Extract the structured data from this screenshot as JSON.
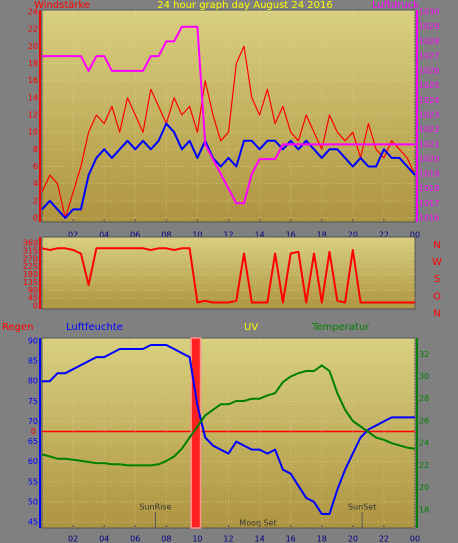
{
  "chart_data": [
    {
      "type": "line",
      "title": "24 hour graph day  August 24 2016",
      "y_label": "Windstärke",
      "y2_label": "Luftdruck",
      "axis_colors": {
        "y": "#ff0000",
        "y2": "#ff00ff"
      },
      "grid": true,
      "x": [
        0,
        0.5,
        1,
        1.5,
        2,
        2.5,
        3,
        3.5,
        4,
        4.5,
        5,
        5.5,
        6,
        6.5,
        7,
        7.5,
        8,
        8.5,
        9,
        9.5,
        10,
        10.5,
        11,
        11.5,
        12,
        12.5,
        13,
        13.5,
        14,
        14.5,
        15,
        15.5,
        16,
        16.5,
        17,
        17.5,
        18,
        18.5,
        19,
        19.5,
        20,
        20.5,
        21,
        21.5,
        22,
        22.5,
        23,
        23.5,
        24
      ],
      "xlim": [
        0,
        24
      ],
      "xticks": [
        {
          "value": 2,
          "label": "02"
        },
        {
          "value": 4,
          "label": "04"
        },
        {
          "value": 6,
          "label": "06"
        },
        {
          "value": 8,
          "label": "08"
        },
        {
          "value": 10,
          "label": "10"
        },
        12,
        14,
        16,
        18,
        20,
        22,
        {
          "value": 24,
          "label": "00"
        }
      ],
      "ylim": [
        0,
        24
      ],
      "yticks": [
        0,
        2,
        4,
        6,
        8,
        10,
        12,
        14,
        16,
        18,
        20,
        22,
        24
      ],
      "y2lim": [
        1016,
        1030
      ],
      "y2ticks": [
        1016,
        1017,
        1018,
        1019,
        1020,
        1021,
        1022,
        1023,
        1024,
        1025,
        1026,
        1027,
        1028,
        1029,
        1030
      ],
      "series": [
        {
          "color": "#ff0000",
          "values": [
            3,
            5,
            4,
            0,
            3,
            6,
            10,
            12,
            11,
            13,
            10,
            14,
            12,
            10,
            15,
            13,
            11,
            14,
            12,
            13,
            10,
            16,
            12,
            9,
            10,
            18,
            20,
            14,
            12,
            15,
            11,
            13,
            10,
            9,
            12,
            10,
            8,
            12,
            10,
            9,
            10,
            7,
            11,
            8,
            7,
            9,
            8,
            7,
            5
          ]
        },
        {
          "color": "#0000ff",
          "values": [
            1,
            2,
            1,
            0,
            1,
            1,
            5,
            7,
            8,
            7,
            8,
            9,
            8,
            9,
            8,
            9,
            11,
            10,
            8,
            9,
            7,
            9,
            7,
            6,
            7,
            6,
            9,
            9,
            8,
            9,
            9,
            8,
            9,
            8,
            9,
            8,
            7,
            8,
            8,
            7,
            6,
            7,
            6,
            6,
            8,
            7,
            7,
            6,
            5
          ]
        },
        {
          "color": "#ff00ff",
          "axis": "y2",
          "values": [
            1027,
            1027,
            1027,
            1027,
            1027,
            1027,
            1026,
            1027,
            1027,
            1026,
            1026,
            1026,
            1026,
            1026,
            1027,
            1027,
            1028,
            1028,
            1029,
            1029,
            1029,
            1021,
            1020,
            1019,
            1018,
            1017,
            1017,
            1019,
            1020,
            1020,
            1020,
            1021,
            1021,
            1021,
            1021,
            1021,
            1021,
            1021,
            1021,
            1021,
            1021,
            1021,
            1021,
            1021,
            1021,
            1021,
            1021,
            1021,
            1021
          ]
        }
      ]
    },
    {
      "type": "line",
      "axis_colors": {
        "y": "#ff0000"
      },
      "grid": true,
      "compass": [
        "N",
        "W",
        "S",
        "O",
        "N"
      ],
      "x": [
        0,
        0.5,
        1,
        1.5,
        2,
        2.5,
        3,
        3.5,
        4,
        4.5,
        5,
        5.5,
        6,
        6.5,
        7,
        7.5,
        8,
        8.5,
        9,
        9.5,
        10,
        10.5,
        11,
        11.5,
        12,
        12.5,
        13,
        13.5,
        14,
        14.5,
        15,
        15.5,
        16,
        16.5,
        17,
        17.5,
        18,
        18.5,
        19,
        19.5,
        20,
        20.5,
        21,
        21.5,
        22,
        22.5,
        23,
        23.5,
        24
      ],
      "xlim": [
        0,
        24
      ],
      "ylim": [
        0,
        360
      ],
      "yticks": [
        0,
        45,
        90,
        135,
        180,
        225,
        270,
        315,
        360
      ],
      "series": [
        {
          "color": "#ff0000",
          "values": [
            330,
            320,
            330,
            330,
            320,
            300,
            120,
            330,
            330,
            330,
            330,
            330,
            330,
            330,
            320,
            330,
            330,
            320,
            330,
            330,
            20,
            30,
            20,
            20,
            20,
            30,
            300,
            20,
            20,
            20,
            300,
            20,
            300,
            310,
            20,
            300,
            20,
            310,
            30,
            20,
            320,
            20,
            20,
            20,
            20,
            20,
            20,
            20,
            20
          ]
        }
      ]
    },
    {
      "type": "line",
      "y3_label": "Regen",
      "y_label": "Luftfeuchte",
      "uv_label": "UV",
      "y2_label": "Temperatur",
      "axis_colors": {
        "y": "#0000ff",
        "y2": "#008000",
        "y3": "#ff0000"
      },
      "grid": true,
      "uv_range": [
        9.6,
        10.2
      ],
      "uv_color": "#ff2020",
      "annotations": [
        {
          "text": "SunRise",
          "x": 7.3
        },
        {
          "text": "Moon Set",
          "x": 13.9
        },
        {
          "text": "SunSet",
          "x": 20.6
        }
      ],
      "x": [
        0,
        0.5,
        1,
        1.5,
        2,
        2.5,
        3,
        3.5,
        4,
        4.5,
        5,
        5.5,
        6,
        6.5,
        7,
        7.5,
        8,
        8.5,
        9,
        9.5,
        10,
        10.5,
        11,
        11.5,
        12,
        12.5,
        13,
        13.5,
        14,
        14.5,
        15,
        15.5,
        16,
        16.5,
        17,
        17.5,
        18,
        18.5,
        19,
        19.5,
        20,
        20.5,
        21,
        21.5,
        22,
        22.5,
        23,
        23.5,
        24
      ],
      "xlim": [
        0,
        24
      ],
      "xticks": [
        {
          "value": 2,
          "label": "02"
        },
        {
          "value": 4,
          "label": "04"
        },
        {
          "value": 6,
          "label": "06"
        },
        {
          "value": 8,
          "label": "08"
        },
        {
          "value": 10,
          "label": "10"
        },
        12,
        14,
        16,
        18,
        20,
        22,
        {
          "value": 24,
          "label": "00"
        }
      ],
      "ylim": [
        45,
        90
      ],
      "yticks": [
        45,
        50,
        55,
        60,
        65,
        70,
        75,
        80,
        85,
        90
      ],
      "y2lim": [
        16.9,
        33.2
      ],
      "y2ticks": [
        18,
        20,
        22,
        24,
        26,
        28,
        30,
        32
      ],
      "y3lim": [
        -1,
        1
      ],
      "y3ticks": [
        0
      ],
      "series": [
        {
          "color": "#0000ff",
          "values": [
            80,
            80,
            82,
            82,
            83,
            84,
            85,
            86,
            86,
            87,
            88,
            88,
            88,
            88,
            89,
            89,
            89,
            88,
            87,
            86,
            74,
            66,
            64,
            63,
            62,
            65,
            64,
            63,
            63,
            62,
            63,
            58,
            57,
            54,
            51,
            50,
            47,
            47,
            53,
            58,
            62,
            66,
            68,
            69,
            70,
            71,
            71,
            71,
            71
          ]
        },
        {
          "color": "#008000",
          "axis": "y2",
          "values": [
            23,
            22.8,
            22.6,
            22.6,
            22.5,
            22.4,
            22.3,
            22.2,
            22.2,
            22.1,
            22.1,
            22,
            22,
            22,
            22,
            22.1,
            22.4,
            22.8,
            23.5,
            24.5,
            25.5,
            26.5,
            27,
            27.5,
            27.5,
            27.8,
            27.8,
            28,
            28,
            28.3,
            28.5,
            29.5,
            30,
            30.3,
            30.5,
            30.5,
            31,
            30.5,
            28.5,
            27,
            26,
            25.5,
            25,
            24.5,
            24.3,
            24,
            23.8,
            23.6,
            23.5
          ]
        }
      ]
    }
  ]
}
